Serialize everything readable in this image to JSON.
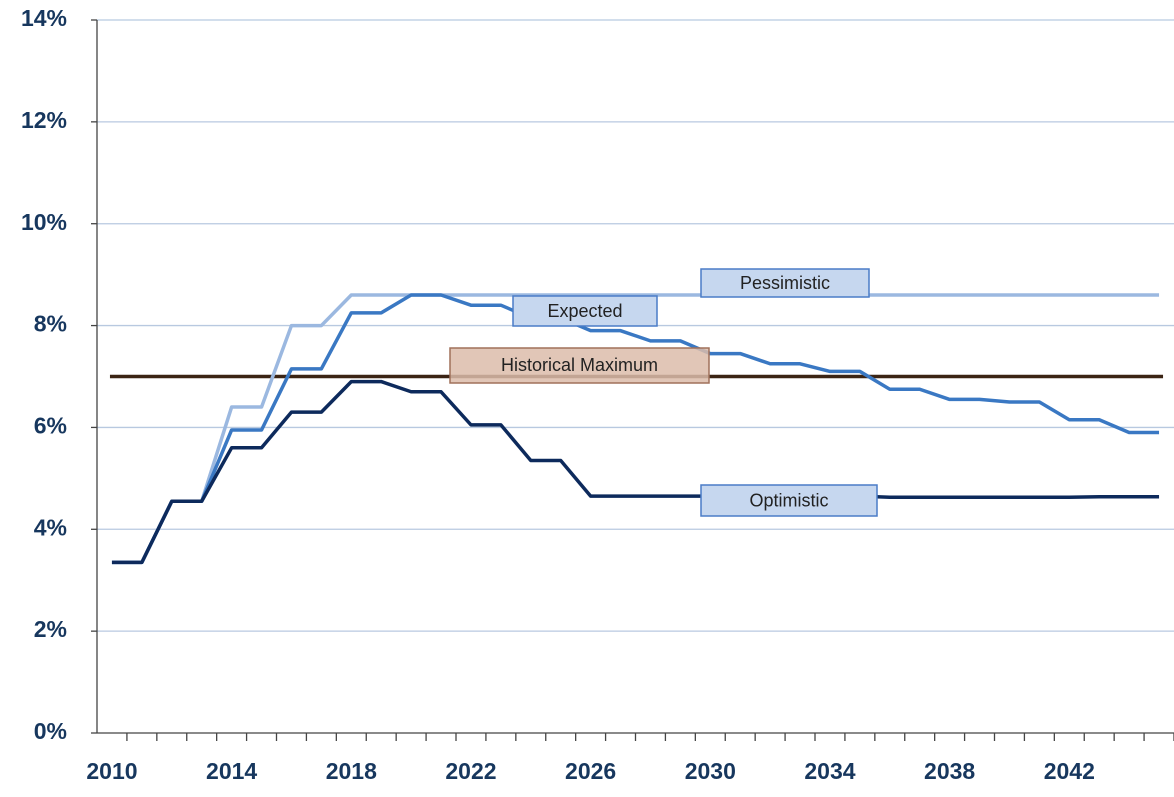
{
  "chart_data": {
    "type": "line",
    "categories": [
      "2010",
      null,
      null,
      null,
      "2014",
      null,
      null,
      null,
      "2018",
      null,
      null,
      null,
      "2022",
      null,
      null,
      null,
      "2026",
      null,
      null,
      null,
      "2030",
      null,
      null,
      null,
      "2034",
      null,
      null,
      null,
      "2038",
      null,
      null,
      null,
      "2042",
      null,
      null,
      null
    ],
    "series": [
      {
        "name": "Optimistic",
        "color": "#0d2a5c",
        "values": [
          3.35,
          3.35,
          4.55,
          4.55,
          5.6,
          5.6,
          6.3,
          6.3,
          6.9,
          6.9,
          6.7,
          6.7,
          6.05,
          6.05,
          5.35,
          5.35,
          4.65,
          4.65,
          4.65,
          4.65,
          4.65,
          4.65,
          4.65,
          4.65,
          4.65,
          4.65,
          4.63,
          4.63,
          4.63,
          4.63,
          4.63,
          4.63,
          4.63,
          4.64,
          4.64,
          4.64
        ]
      },
      {
        "name": "Expected",
        "color": "#3a78c3",
        "values": [
          3.35,
          3.35,
          4.55,
          4.55,
          5.95,
          5.95,
          7.15,
          7.15,
          8.25,
          8.25,
          8.6,
          8.6,
          8.4,
          8.4,
          8.15,
          8.15,
          7.9,
          7.9,
          7.7,
          7.7,
          7.45,
          7.45,
          7.25,
          7.25,
          7.1,
          7.1,
          6.75,
          6.75,
          6.55,
          6.55,
          6.5,
          6.5,
          6.15,
          6.15,
          5.9,
          5.9
        ]
      },
      {
        "name": "Pessimistic",
        "color": "#9bb8e0",
        "values": [
          3.35,
          3.35,
          4.55,
          4.55,
          6.4,
          6.4,
          8.0,
          8.0,
          8.6,
          8.6,
          8.6,
          8.6,
          8.6,
          8.6,
          8.6,
          8.6,
          8.6,
          8.6,
          8.6,
          8.6,
          8.6,
          8.6,
          8.6,
          8.6,
          8.6,
          8.6,
          8.6,
          8.6,
          8.6,
          8.6,
          8.6,
          8.6,
          8.6,
          8.6,
          8.6,
          8.6
        ]
      }
    ],
    "reference_line": {
      "name": "Historical Maximum",
      "value": 7,
      "color": "#3b2414"
    },
    "ylim": [
      0,
      14
    ],
    "yticks": [
      {
        "value": 0,
        "label": "0%"
      },
      {
        "value": 2,
        "label": "2%"
      },
      {
        "value": 4,
        "label": "4%"
      },
      {
        "value": 6,
        "label": "6%"
      },
      {
        "value": 8,
        "label": "8%"
      },
      {
        "value": 10,
        "label": "10%"
      },
      {
        "value": 12,
        "label": "12%"
      },
      {
        "value": 14,
        "label": "14%"
      }
    ],
    "grid": true
  }
}
